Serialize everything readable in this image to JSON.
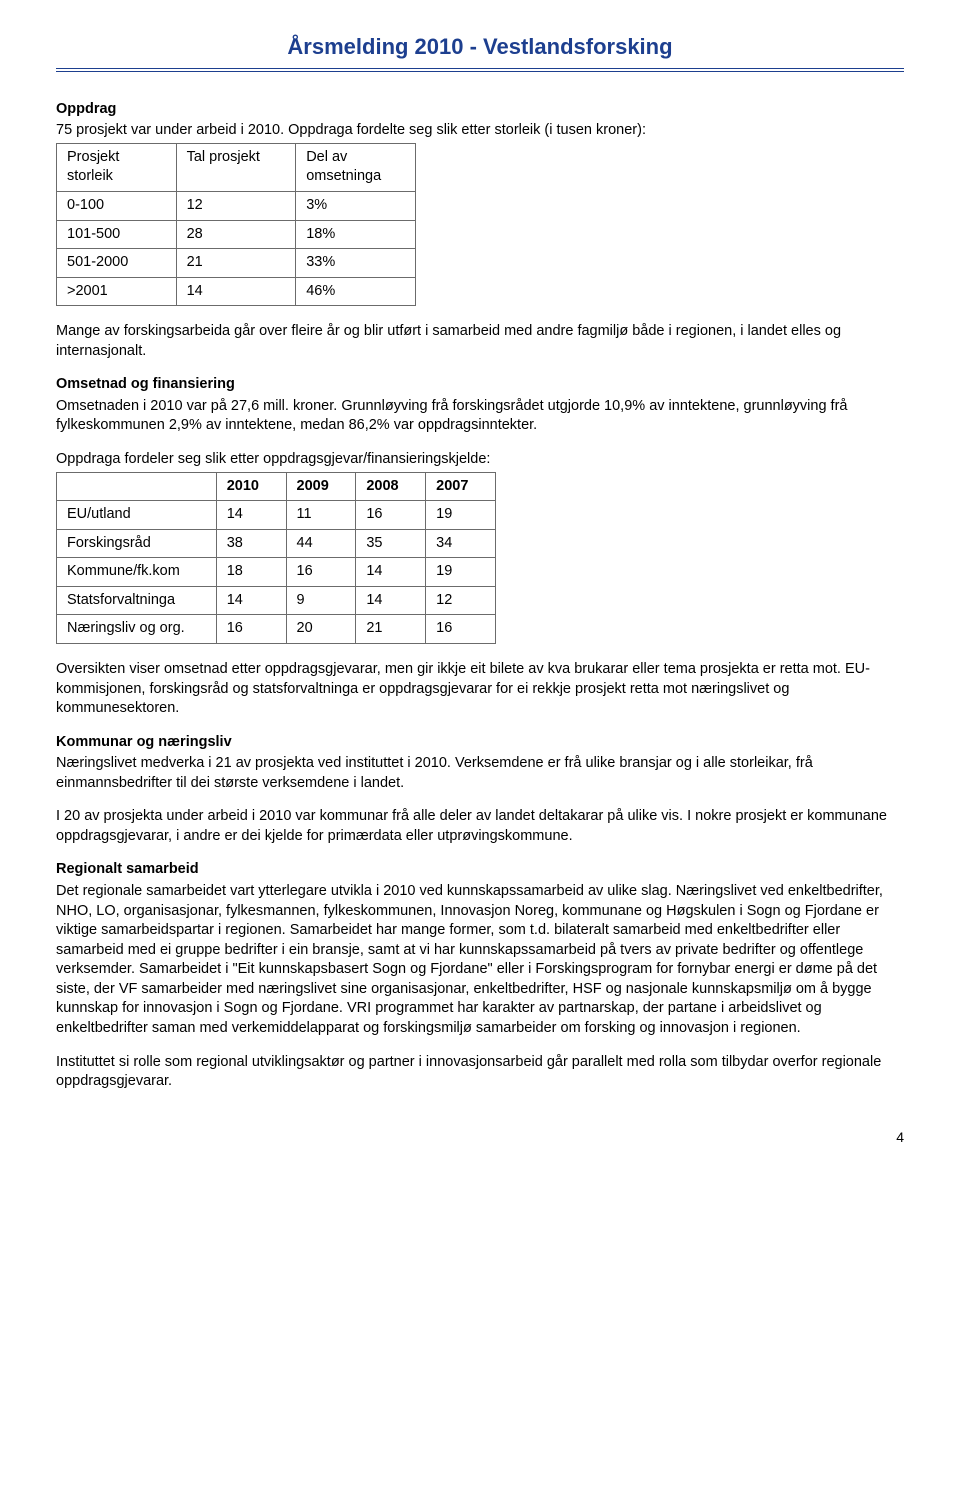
{
  "header": {
    "title": "Årsmelding 2010 - Vestlandsforsking"
  },
  "s_oppdrag": {
    "heading": "Oppdrag",
    "intro": "75 prosjekt var under arbeid i 2010. Oppdraga fordelte seg slik etter storleik (i tusen kroner):"
  },
  "table1": {
    "col1_h": "Prosjekt storleik",
    "col2_h": "Tal prosjekt",
    "col3_h": "Del av omsetninga",
    "rows": [
      {
        "c1": "0-100",
        "c2": "12",
        "c3": "3%"
      },
      {
        "c1": "101-500",
        "c2": "28",
        "c3": "18%"
      },
      {
        "c1": "501-2000",
        "c2": "21",
        "c3": "33%"
      },
      {
        "c1": ">2001",
        "c2": "14",
        "c3": "46%"
      }
    ]
  },
  "p_forsk": "Mange av forskingsarbeida går over fleire år og blir utført i samarbeid med andre fagmiljø både i regionen, i landet elles og internasjonalt.",
  "s_omset": {
    "heading": "Omsetnad og finansiering",
    "p1": "Omsetnaden i 2010 var på 27,6 mill. kroner. Grunnløyving frå forskingsrådet utgjorde 10,9% av inntektene, grunnløyving frå fylkeskommunen 2,9% av inntektene, medan 86,2% var oppdragsinntekter.",
    "p2": "Oppdraga fordeler seg slik etter oppdragsgjevar/finansieringskjelde:"
  },
  "table2": {
    "years": [
      "2010",
      "2009",
      "2008",
      "2007"
    ],
    "rows": [
      {
        "label": "EU/utland",
        "v": [
          "14",
          "11",
          "16",
          "19"
        ]
      },
      {
        "label": "Forskingsråd",
        "v": [
          "38",
          "44",
          "35",
          "34"
        ]
      },
      {
        "label": "Kommune/fk.kom",
        "v": [
          "18",
          "16",
          "14",
          "19"
        ]
      },
      {
        "label": "Statsforvaltninga",
        "v": [
          "14",
          "9",
          "14",
          "12"
        ]
      },
      {
        "label": "Næringsliv og org.",
        "v": [
          "16",
          "20",
          "21",
          "16"
        ]
      }
    ]
  },
  "p_oversikt": "Oversikten viser omsetnad etter oppdragsgjevarar, men gir ikkje eit bilete av kva brukarar eller tema prosjekta er retta mot. EU-kommisjonen, forskingsråd og statsforvaltninga er oppdragsgjevarar for ei rekkje prosjekt retta mot næringslivet og kommunesektoren.",
  "s_komm": {
    "heading": "Kommunar og næringsliv",
    "p1": "Næringslivet medverka i 21 av prosjekta ved instituttet i 2010. Verksemdene er frå ulike bransjar og i alle storleikar, frå einmannsbedrifter til dei største verksemdene i landet.",
    "p2": "I 20 av prosjekta under arbeid i 2010 var kommunar frå alle deler av landet deltakarar på ulike vis. I nokre prosjekt er kommunane oppdragsgjevarar, i andre er dei kjelde for primærdata eller utprøvingskommune."
  },
  "s_reg": {
    "heading": "Regionalt samarbeid",
    "p1": "Det regionale samarbeidet vart ytterlegare utvikla i 2010 ved kunnskapssamarbeid av ulike slag. Næringslivet ved enkeltbedrifter, NHO, LO, organisasjonar, fylkesmannen, fylkeskommunen, Innovasjon Noreg, kommunane og Høgskulen i Sogn og Fjordane er viktige samarbeidspartar i regionen. Samarbeidet har mange former, som t.d. bilateralt samarbeid med enkeltbedrifter eller samarbeid med ei gruppe bedrifter i ein bransje, samt at vi har kunnskapssamarbeid på tvers av private bedrifter og offentlege verksemder. Samarbeidet i \"Eit kunnskapsbasert Sogn og Fjordane\" eller i Forskingsprogram for fornybar energi er døme på det siste, der VF samarbeider med næringslivet sine organisasjonar, enkeltbedrifter, HSF og nasjonale kunnskapsmiljø om å bygge kunnskap for innovasjon i Sogn og Fjordane. VRI programmet har karakter av partnarskap, der partane i arbeidslivet og enkeltbedrifter saman med verkemiddelapparat og forskingsmiljø samarbeider om forsking og innovasjon i regionen.",
    "p2": "Instituttet si rolle som regional utviklingsaktør og partner i innovasjonsarbeid går parallelt med rolla som tilbydar overfor regionale oppdragsgjevarar."
  },
  "page_number": "4",
  "colors": {
    "heading_blue": "#1d3f8f",
    "border_gray": "#6b6b6b",
    "text": "#000000",
    "background": "#ffffff"
  },
  "typography": {
    "body_fontsize_pt": 11,
    "header_fontsize_pt": 16,
    "font_family": "Arial"
  }
}
